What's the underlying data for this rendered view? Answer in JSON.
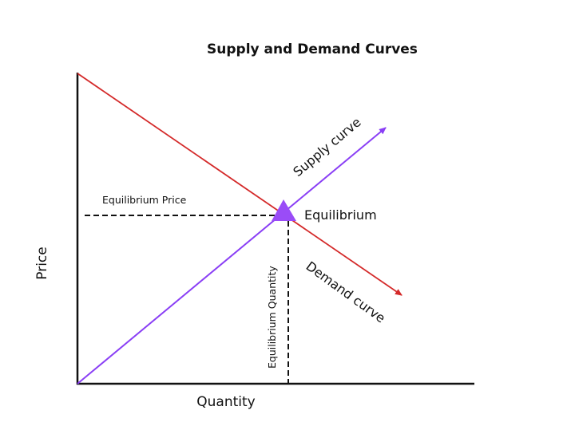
{
  "title": "Supply and Demand Curves",
  "axes": {
    "x_label": "Quantity",
    "y_label": "Price"
  },
  "labels": {
    "supply": "Supply curve",
    "demand": "Demand curve",
    "equilibrium": "Equilibrium",
    "equilibrium_price": "Equilibrium  Price",
    "equilibrium_quantity": "Equilibrium  Quantity"
  },
  "colors": {
    "supply": "#8a3ff5",
    "demand": "#d42a2a",
    "axis": "#111111",
    "equilibrium_marker": "#9a4cf7"
  }
}
